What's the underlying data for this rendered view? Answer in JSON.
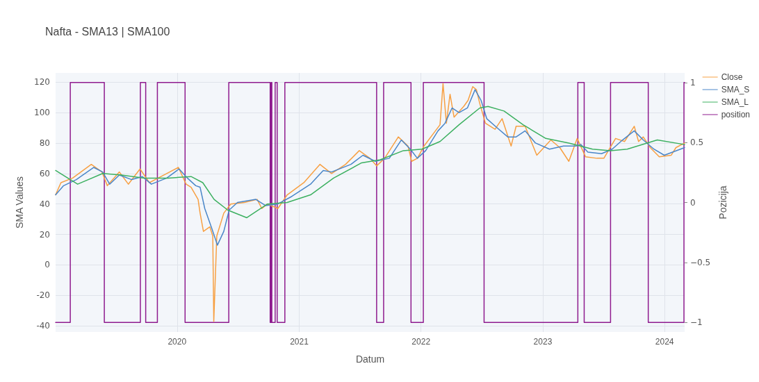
{
  "chart_data": {
    "type": "line",
    "title": "Nafta - SMA13 | SMA100",
    "xlabel": "Datum",
    "ylabel": "SMA Values",
    "y2label": "Pozicija",
    "xlim": [
      "2019-01-02",
      "2024-03-01"
    ],
    "xticks": [
      "2020",
      "2021",
      "2022",
      "2023",
      "2024"
    ],
    "ylim": [
      -44,
      126
    ],
    "yticks": [
      -40,
      -20,
      0,
      20,
      40,
      60,
      80,
      100,
      120
    ],
    "y2lim": [
      -1.08,
      1.08
    ],
    "y2ticks": [
      {
        "value": -1,
        "label": "−1"
      },
      {
        "value": -0.5,
        "label": "−0.5"
      },
      0,
      0.5,
      1
    ],
    "grid": true,
    "legend": "top right",
    "series": [
      {
        "name": "Close",
        "color": "#f7a043",
        "x": [
          "2019-01-02",
          "2019-01-18",
          "2019-02-22",
          "2019-04-19",
          "2019-05-21",
          "2019-06-06",
          "2019-07-12",
          "2019-08-08",
          "2019-09-12",
          "2019-10-10",
          "2019-11-14",
          "2020-01-05",
          "2020-01-28",
          "2020-02-12",
          "2020-03-04",
          "2020-03-10",
          "2020-03-20",
          "2020-04-08",
          "2020-04-17",
          "2020-04-20",
          "2020-04-29",
          "2020-05-20",
          "2020-06-10",
          "2020-07-21",
          "2020-08-28",
          "2020-09-11",
          "2020-09-28",
          "2020-10-29",
          "2020-11-26",
          "2021-01-15",
          "2021-03-04",
          "2021-04-08",
          "2021-05-20",
          "2021-06-30",
          "2021-07-13",
          "2021-08-01",
          "2021-08-21",
          "2021-09-14",
          "2021-10-25",
          "2021-11-23",
          "2021-12-04",
          "2021-12-21",
          "2022-01-10",
          "2022-02-27",
          "2022-03-08",
          "2022-03-18",
          "2022-03-29",
          "2022-04-10",
          "2022-05-09",
          "2022-05-22",
          "2022-06-05",
          "2022-06-16",
          "2022-06-26",
          "2022-07-13",
          "2022-08-11",
          "2022-09-01",
          "2022-09-28",
          "2022-10-13",
          "2022-11-09",
          "2022-12-14",
          "2023-01-25",
          "2023-02-21",
          "2023-03-20",
          "2023-04-14",
          "2023-05-09",
          "2023-06-12",
          "2023-07-03",
          "2023-08-07",
          "2023-09-03",
          "2023-10-02",
          "2023-10-15",
          "2023-10-29",
          "2023-11-19",
          "2023-12-16",
          "2024-01-21",
          "2024-02-04",
          "2024-03-01"
        ],
        "values": [
          46,
          54,
          57,
          66,
          61,
          52,
          61,
          53,
          63,
          54,
          58,
          64,
          53,
          51,
          43,
          34,
          22,
          25,
          19,
          -37,
          19,
          34,
          40,
          41,
          43,
          37,
          40,
          37,
          46,
          54,
          66,
          60,
          66,
          75,
          73,
          70,
          65,
          70,
          84,
          78,
          68,
          70,
          78,
          92,
          119,
          93,
          112,
          97,
          104,
          108,
          117,
          115,
          106,
          93,
          89,
          96,
          78,
          91,
          91,
          72,
          82,
          77,
          68,
          83,
          71,
          70,
          70,
          83,
          81,
          91,
          81,
          84,
          77,
          71,
          72,
          77,
          80
        ]
      },
      {
        "name": "SMA_S",
        "color": "#4a86c8",
        "x": [
          "2019-01-02",
          "2019-01-26",
          "2019-03-05",
          "2019-04-26",
          "2019-05-23",
          "2019-06-13",
          "2019-07-12",
          "2019-08-18",
          "2019-09-19",
          "2019-10-16",
          "2019-12-01",
          "2020-01-07",
          "2020-02-01",
          "2020-02-26",
          "2020-03-10",
          "2020-03-24",
          "2020-04-14",
          "2020-05-01",
          "2020-05-20",
          "2020-06-05",
          "2020-06-30",
          "2020-08-24",
          "2020-09-22",
          "2020-10-29",
          "2020-12-10",
          "2021-02-04",
          "2021-03-14",
          "2021-04-08",
          "2021-06-05",
          "2021-07-11",
          "2021-08-17",
          "2021-09-28",
          "2021-11-03",
          "2021-11-30",
          "2021-12-21",
          "2022-01-15",
          "2022-02-21",
          "2022-03-14",
          "2022-04-04",
          "2022-04-25",
          "2022-05-20",
          "2022-06-12",
          "2022-06-30",
          "2022-07-17",
          "2022-08-17",
          "2022-09-18",
          "2022-10-13",
          "2022-11-09",
          "2022-12-10",
          "2023-01-21",
          "2023-03-04",
          "2023-04-10",
          "2023-04-25",
          "2023-05-16",
          "2023-06-26",
          "2023-07-28",
          "2023-08-28",
          "2023-10-02",
          "2023-10-29",
          "2023-11-30",
          "2023-12-31",
          "2024-03-01"
        ],
        "values": [
          46,
          52,
          56,
          64,
          61,
          53,
          59,
          56,
          58,
          53,
          57,
          63,
          57,
          52,
          51,
          37,
          24,
          13,
          22,
          36,
          41,
          43,
          39,
          40,
          45,
          53,
          62,
          61,
          66,
          72,
          68,
          70,
          82,
          76,
          70,
          75,
          88,
          93,
          103,
          100,
          103,
          115,
          108,
          96,
          90,
          84,
          84,
          88,
          80,
          76,
          78,
          78,
          79,
          74,
          73,
          76,
          82,
          88,
          82,
          76,
          72,
          77
        ]
      },
      {
        "name": "SMA_L",
        "color": "#3cb060",
        "x": [
          "2019-01-02",
          "2019-03-09",
          "2019-05-23",
          "2019-07-18",
          "2019-09-25",
          "2019-12-05",
          "2020-02-12",
          "2020-03-18",
          "2020-04-21",
          "2020-06-01",
          "2020-07-28",
          "2020-09-28",
          "2020-11-26",
          "2021-02-04",
          "2021-04-14",
          "2021-07-07",
          "2021-09-01",
          "2021-11-09",
          "2022-01-04",
          "2022-02-27",
          "2022-04-25",
          "2022-06-26",
          "2022-07-21",
          "2022-09-07",
          "2022-11-03",
          "2023-01-10",
          "2023-03-20",
          "2023-05-30",
          "2023-07-23",
          "2023-09-11",
          "2023-12-10",
          "2024-03-01"
        ],
        "values": [
          62,
          53,
          60,
          59,
          57,
          57,
          58,
          54,
          43,
          36,
          31,
          40,
          41,
          46,
          57,
          67,
          69,
          75,
          76,
          81,
          92,
          103,
          104,
          101,
          92,
          83,
          80,
          76,
          75,
          76,
          82,
          79
        ]
      },
      {
        "name": "position",
        "type": "step",
        "axis": "y2",
        "color": "#8e1a8e",
        "x": [
          "2019-01-02",
          "2019-02-15",
          "2019-05-28",
          "2019-09-13",
          "2019-09-29",
          "2019-11-03",
          "2020-01-25",
          "2020-06-04",
          "2020-10-06",
          "2020-10-09",
          "2020-10-11",
          "2020-10-21",
          "2020-10-27",
          "2020-11-19",
          "2021-08-21",
          "2021-09-11",
          "2021-12-02",
          "2022-01-08",
          "2022-07-09",
          "2023-04-16",
          "2023-05-05",
          "2023-07-23",
          "2023-11-13",
          "2024-02-28",
          "2024-03-01"
        ],
        "values": [
          -1,
          1,
          -1,
          1,
          -1,
          1,
          -1,
          1,
          -1,
          1,
          -1,
          1,
          -1,
          1,
          -1,
          1,
          -1,
          1,
          -1,
          1,
          -1,
          1,
          -1,
          1,
          1
        ]
      }
    ]
  }
}
